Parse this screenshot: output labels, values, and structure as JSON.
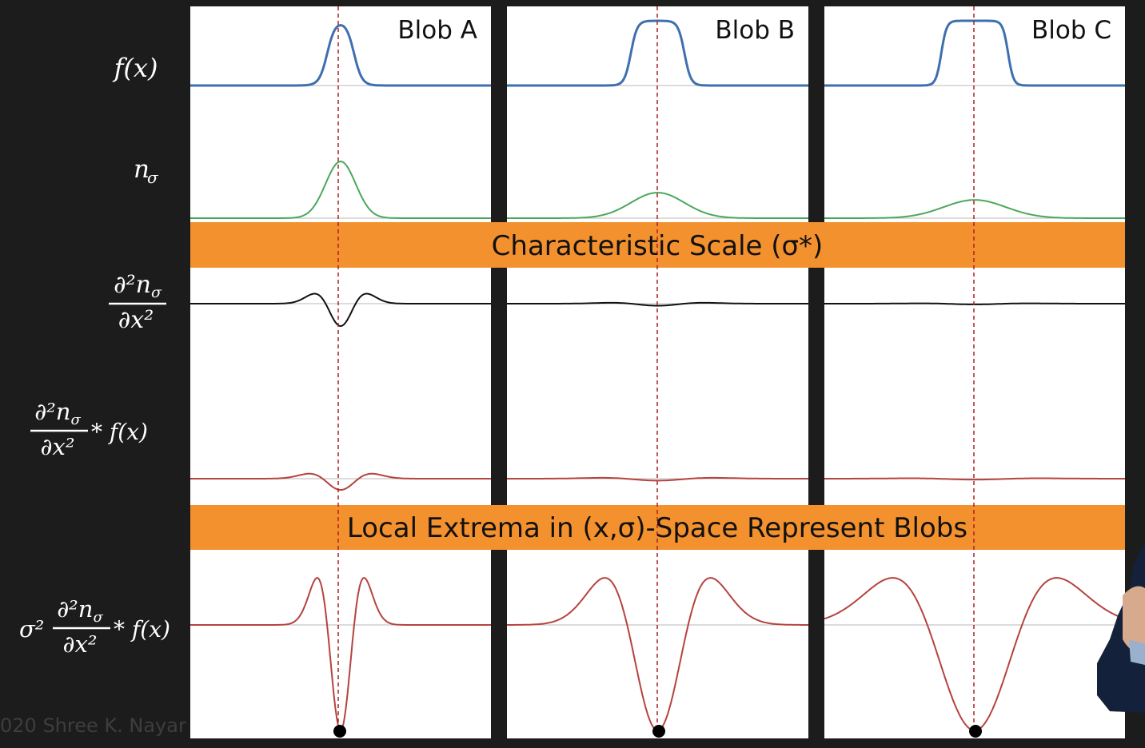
{
  "row_labels": {
    "f": "f(x)",
    "n_sigma": "n_σ",
    "second_derivative": "∂²n_σ/∂x²",
    "convolution": "∂²n_σ/∂x² * f(x)",
    "normalized": "σ² ∂²n_σ/∂x² * f(x)"
  },
  "panels": [
    {
      "title": "Blob A",
      "blob_width": 0.08,
      "sigma": 0.045
    },
    {
      "title": "Blob B",
      "blob_width": 0.2,
      "sigma": 0.1
    },
    {
      "title": "Blob C",
      "blob_width": 0.3,
      "sigma": 0.14
    }
  ],
  "bands": {
    "characteristic_scale": "Characteristic Scale (σ*)",
    "local_extrema": "Local Extrema in (x,σ)-Space Represent Blobs"
  },
  "watermark": "020 Shree K. Nayar",
  "colors": {
    "background": "#1c1c1c",
    "panel": "#ffffff",
    "band": "#f4912f",
    "blue": "#3e6faf",
    "green": "#4aa85a",
    "black": "#111111",
    "red": "#b5433e",
    "guide": "#b02020",
    "axis": "#b8b8b8"
  }
}
